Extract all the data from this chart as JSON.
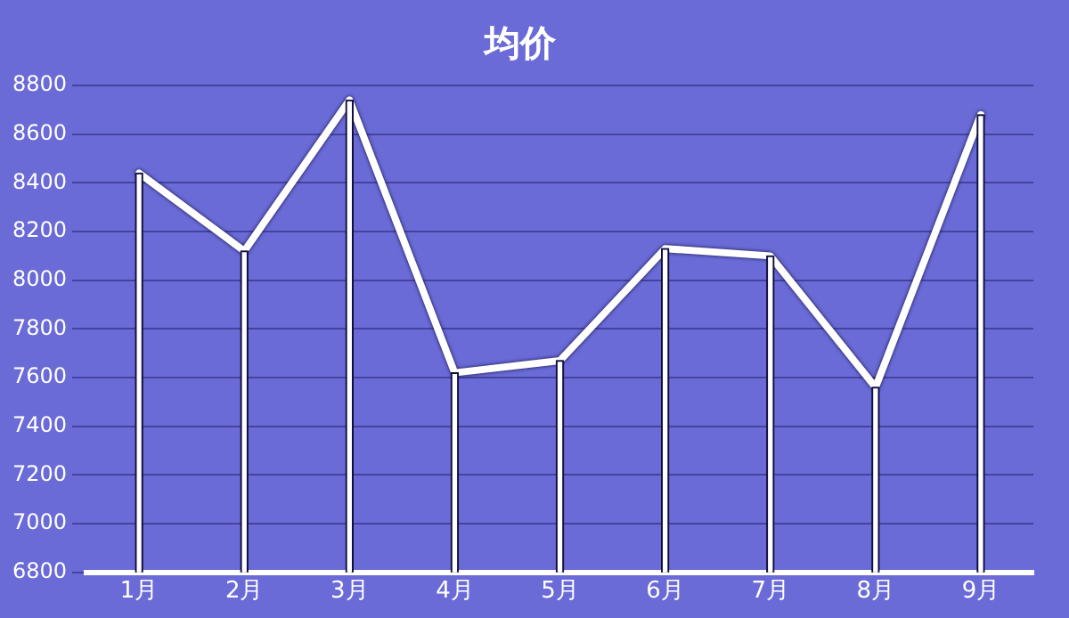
{
  "chart_data": {
    "type": "line",
    "title": "均价",
    "categories": [
      "1月",
      "2月",
      "3月",
      "4月",
      "5月",
      "6月",
      "7月",
      "8月",
      "9月"
    ],
    "series": [
      {
        "color": "#ffffff",
        "values": [
          8440,
          8120,
          8740,
          7620,
          7670,
          8130,
          8100,
          7560,
          8680
        ]
      },
      {
        "type": "bar",
        "color": "#ffffff",
        "values": [
          8440,
          8120,
          8740,
          7620,
          7670,
          8130,
          8100,
          7560,
          8680
        ]
      }
    ],
    "ylim": [
      6800,
      8800
    ],
    "yticks": [
      6800,
      7000,
      7200,
      7400,
      7600,
      7800,
      8000,
      8200,
      8400,
      8600,
      8800
    ],
    "grid": "y",
    "legend": false,
    "marker": "none",
    "line_style": "solid"
  }
}
